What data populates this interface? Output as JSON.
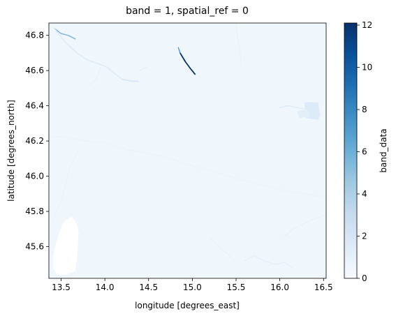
{
  "chart_data": {
    "type": "heatmap",
    "title": "band = 1, spatial_ref = 0",
    "xlabel": "longitude [degrees_east]",
    "ylabel": "latitude [degrees_north]",
    "xlim": [
      13.36,
      16.53
    ],
    "ylim": [
      45.42,
      46.87
    ],
    "x_ticks": [
      13.5,
      14.0,
      14.5,
      15.0,
      15.5,
      16.0,
      16.5
    ],
    "x_tick_labels": [
      "13.5",
      "14.0",
      "14.5",
      "15.0",
      "15.5",
      "16.0",
      "16.5"
    ],
    "y_ticks": [
      45.6,
      45.8,
      46.0,
      46.2,
      46.4,
      46.6,
      46.8
    ],
    "y_tick_labels": [
      "45.6",
      "45.8",
      "46.0",
      "46.2",
      "46.4",
      "46.6",
      "46.8"
    ],
    "grid": false,
    "background_value": 0.5,
    "colormap": "Blues",
    "colorbar": {
      "label": "band_data",
      "vmin": 0,
      "vmax": 12.1,
      "ticks": [
        0,
        2,
        4,
        6,
        8,
        10,
        12
      ],
      "tick_labels": [
        "0",
        "2",
        "4",
        "6",
        "8",
        "10",
        "12"
      ]
    },
    "features": [
      {
        "kind": "polyline",
        "value": 5.5,
        "width": 0.012,
        "points": [
          [
            13.42,
            46.84
          ],
          [
            13.5,
            46.81
          ],
          [
            13.58,
            46.8
          ],
          [
            13.66,
            46.78
          ]
        ]
      },
      {
        "kind": "polyline",
        "value": 1.5,
        "width": 0.012,
        "points": [
          [
            13.42,
            46.84
          ],
          [
            13.55,
            46.76
          ],
          [
            13.68,
            46.7
          ],
          [
            13.8,
            46.66
          ],
          [
            13.92,
            46.64
          ],
          [
            14.02,
            46.62
          ],
          [
            14.12,
            46.58
          ],
          [
            14.2,
            46.55
          ]
        ]
      },
      {
        "kind": "polyline",
        "value": 1.9,
        "width": 0.014,
        "points": [
          [
            14.2,
            46.55
          ],
          [
            14.3,
            46.54
          ],
          [
            14.38,
            46.54
          ]
        ]
      },
      {
        "kind": "polyline",
        "value": 12.1,
        "width": 0.014,
        "points": [
          [
            14.86,
            46.7
          ],
          [
            14.92,
            46.65
          ],
          [
            14.98,
            46.61
          ],
          [
            15.03,
            46.58
          ]
        ]
      },
      {
        "kind": "polyline",
        "value": 7.5,
        "width": 0.01,
        "points": [
          [
            14.84,
            46.73
          ],
          [
            14.86,
            46.7
          ]
        ]
      },
      {
        "kind": "polyline",
        "value": 0.9,
        "width": 0.006,
        "points": [
          [
            15.5,
            46.86
          ],
          [
            15.52,
            46.78
          ],
          [
            15.55,
            46.7
          ],
          [
            15.56,
            46.62
          ]
        ]
      },
      {
        "kind": "polyline",
        "value": 1.0,
        "width": 0.006,
        "points": [
          [
            13.95,
            46.62
          ],
          [
            13.9,
            46.55
          ],
          [
            13.82,
            46.52
          ]
        ]
      },
      {
        "kind": "polyline",
        "value": 0.8,
        "width": 0.005,
        "points": [
          [
            13.36,
            46.23
          ],
          [
            13.55,
            46.22
          ],
          [
            13.78,
            46.2
          ],
          [
            14.0,
            46.19
          ],
          [
            14.25,
            46.15
          ],
          [
            14.5,
            46.13
          ],
          [
            14.75,
            46.1
          ],
          [
            15.0,
            46.06
          ],
          [
            15.3,
            46.02
          ],
          [
            15.55,
            45.98
          ],
          [
            15.8,
            45.95
          ],
          [
            16.05,
            45.92
          ],
          [
            16.3,
            45.9
          ],
          [
            16.53,
            45.88
          ]
        ]
      },
      {
        "kind": "polyline",
        "value": 0.8,
        "width": 0.005,
        "points": [
          [
            13.7,
            46.15
          ],
          [
            13.6,
            46.05
          ],
          [
            13.55,
            45.95
          ],
          [
            13.5,
            45.86
          ],
          [
            13.45,
            45.8
          ],
          [
            13.4,
            45.74
          ]
        ]
      },
      {
        "kind": "polyline",
        "value": 0.9,
        "width": 0.005,
        "points": [
          [
            15.2,
            45.65
          ],
          [
            15.3,
            45.6
          ],
          [
            15.4,
            45.56
          ],
          [
            15.48,
            45.52
          ]
        ]
      },
      {
        "kind": "polyline",
        "value": 1.3,
        "width": 0.008,
        "points": [
          [
            15.6,
            45.52
          ],
          [
            15.7,
            45.55
          ],
          [
            15.82,
            45.52
          ],
          [
            15.95,
            45.5
          ],
          [
            16.05,
            45.51
          ],
          [
            16.15,
            45.48
          ]
        ]
      },
      {
        "kind": "polyline",
        "value": 1.0,
        "width": 0.006,
        "points": [
          [
            16.05,
            45.66
          ],
          [
            16.15,
            45.7
          ],
          [
            16.28,
            45.73
          ],
          [
            16.4,
            45.76
          ],
          [
            16.53,
            45.78
          ]
        ]
      },
      {
        "kind": "polyline",
        "value": 1.4,
        "width": 0.012,
        "points": [
          [
            16.0,
            46.39
          ],
          [
            16.1,
            46.4
          ],
          [
            16.2,
            46.39
          ],
          [
            16.3,
            46.38
          ],
          [
            16.4,
            46.36
          ]
        ]
      },
      {
        "kind": "polyline",
        "value": 1.2,
        "width": 0.008,
        "points": [
          [
            14.4,
            46.6
          ],
          [
            14.44,
            46.61
          ],
          [
            14.48,
            46.62
          ]
        ]
      },
      {
        "kind": "polygon",
        "value": 0.0,
        "points": [
          [
            13.55,
            45.75
          ],
          [
            13.62,
            45.77
          ],
          [
            13.67,
            45.74
          ],
          [
            13.7,
            45.68
          ],
          [
            13.69,
            45.6
          ],
          [
            13.68,
            45.52
          ],
          [
            13.66,
            45.46
          ],
          [
            13.55,
            45.44
          ],
          [
            13.45,
            45.44
          ],
          [
            13.41,
            45.48
          ],
          [
            13.41,
            45.55
          ],
          [
            13.44,
            45.62
          ],
          [
            13.48,
            45.68
          ],
          [
            13.52,
            45.73
          ]
        ]
      },
      {
        "kind": "polygon",
        "value": 1.6,
        "points": [
          [
            16.28,
            46.42
          ],
          [
            16.44,
            46.42
          ],
          [
            16.46,
            46.35
          ],
          [
            16.44,
            46.32
          ],
          [
            16.3,
            46.33
          ]
        ]
      },
      {
        "kind": "polygon",
        "value": 1.2,
        "points": [
          [
            16.2,
            46.37
          ],
          [
            16.32,
            46.38
          ],
          [
            16.34,
            46.34
          ],
          [
            16.22,
            46.33
          ]
        ]
      }
    ]
  }
}
